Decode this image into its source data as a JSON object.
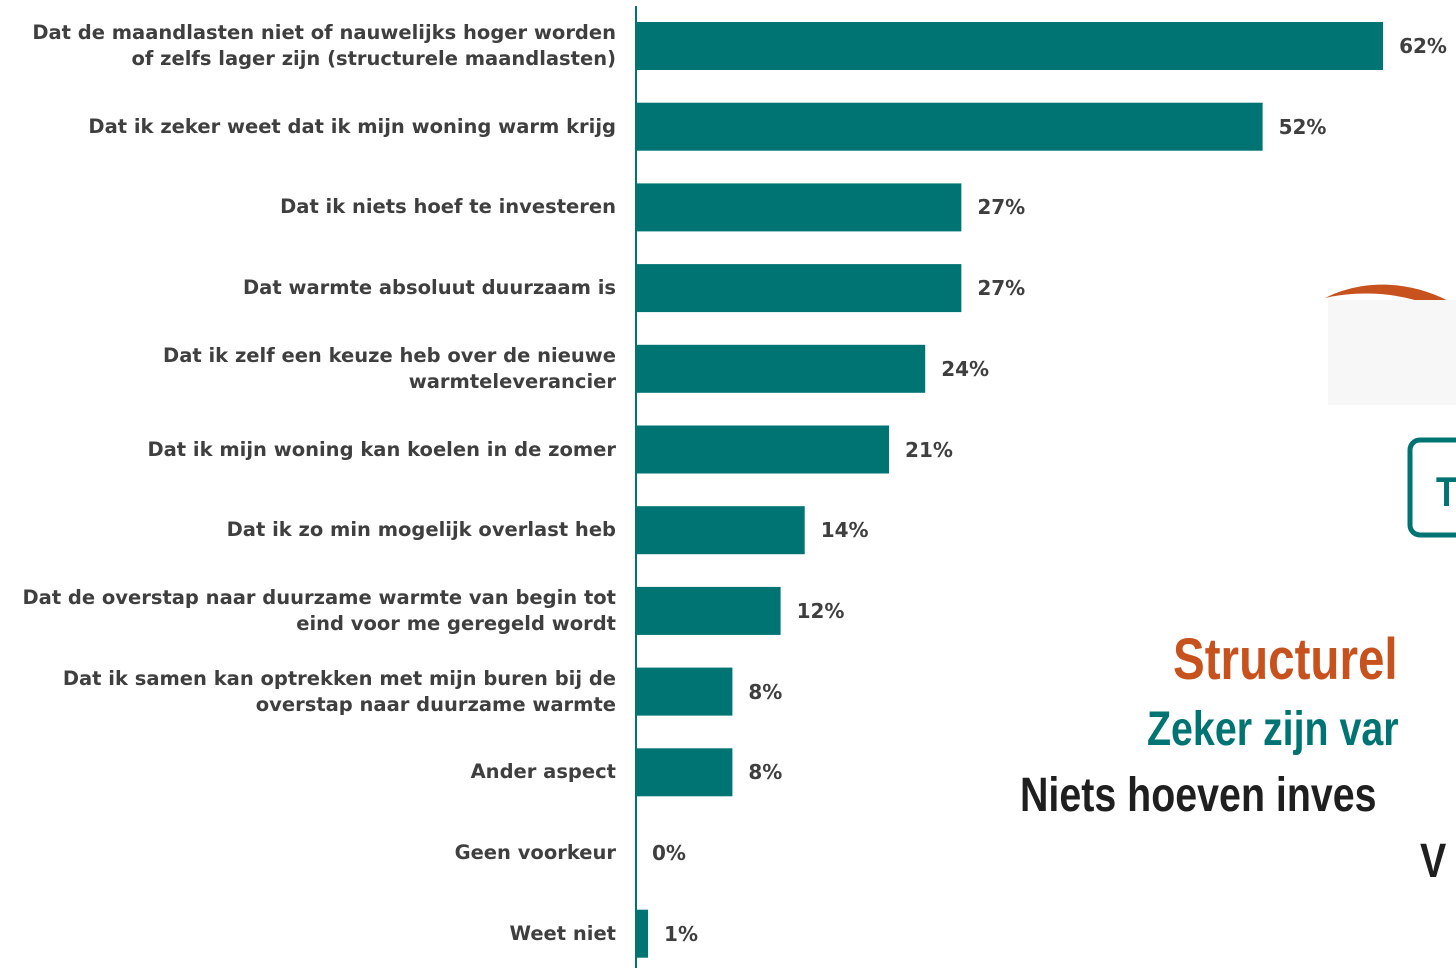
{
  "chart_data": {
    "type": "bar",
    "orientation": "horizontal",
    "categories": [
      "Dat de maandlasten niet of nauwelijks hoger worden of zelfs lager zijn (structurele maandlasten)",
      "Dat ik zeker weet dat ik mijn woning warm krijg",
      "Dat ik niets hoef te investeren",
      "Dat warmte absoluut duurzaam is",
      "Dat ik zelf een keuze heb over de nieuwe warmteleverancier",
      "Dat ik mijn woning kan koelen in de zomer",
      "Dat ik zo min mogelijk overlast heb",
      "Dat de overstap naar duurzame warmte van begin tot eind voor me geregeld wordt",
      "Dat ik samen kan optrekken met mijn buren bij de overstap naar duurzame warmte",
      "Ander aspect",
      "Geen voorkeur",
      "Weet niet"
    ],
    "values": [
      62,
      52,
      27,
      27,
      24,
      21,
      14,
      12,
      8,
      8,
      0,
      1
    ],
    "value_labels": [
      "62%",
      "52%",
      "27%",
      "27%",
      "24%",
      "21%",
      "14%",
      "12%",
      "8%",
      "8%",
      "0%",
      "1%"
    ],
    "color": "#007373",
    "annotations": [
      "T",
      "Structurel",
      "Zeker zijn var",
      "Niets hoeven inves",
      "V"
    ]
  }
}
